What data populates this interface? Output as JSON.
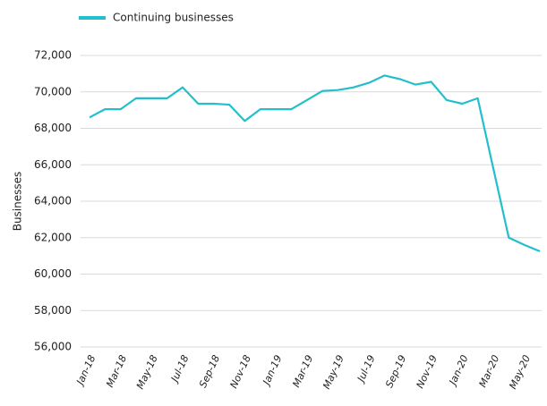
{
  "chart_data": {
    "type": "line",
    "y_label": "Businesses",
    "categories": [
      "Jan-18",
      null,
      "Mar-18",
      null,
      "May-18",
      null,
      "Jul-18",
      null,
      "Sep-18",
      null,
      "Nov-18",
      null,
      "Jan-19",
      null,
      "Mar-19",
      null,
      "May-19",
      null,
      "Jul-19",
      null,
      "Sep-19",
      null,
      "Nov-19",
      null,
      "Jan-20",
      null,
      "Mar-20",
      null,
      "May-20",
      null
    ],
    "series": [
      {
        "name": "Continuing businesses",
        "color": "#22bfcc",
        "values": [
          68600,
          69050,
          69050,
          69650,
          69650,
          69650,
          70250,
          69350,
          69350,
          69300,
          68400,
          69050,
          69050,
          69050,
          69550,
          70050,
          70100,
          70250,
          70500,
          70900,
          70700,
          70400,
          70550,
          69550,
          69350,
          69650,
          65800,
          62000,
          61600,
          61250
        ]
      }
    ],
    "ylim": [
      56000,
      72000
    ],
    "yticks": [
      {
        "value": 56000,
        "label": "56,000"
      },
      {
        "value": 58000,
        "label": "58,000"
      },
      {
        "value": 60000,
        "label": "60,000"
      },
      {
        "value": 62000,
        "label": "62,000"
      },
      {
        "value": 64000,
        "label": "64,000"
      },
      {
        "value": 66000,
        "label": "66,000"
      },
      {
        "value": 68000,
        "label": "68,000"
      },
      {
        "value": 70000,
        "label": "70,000"
      },
      {
        "value": 72000,
        "label": "72,000"
      }
    ],
    "grid": true,
    "legend": "top-left"
  }
}
